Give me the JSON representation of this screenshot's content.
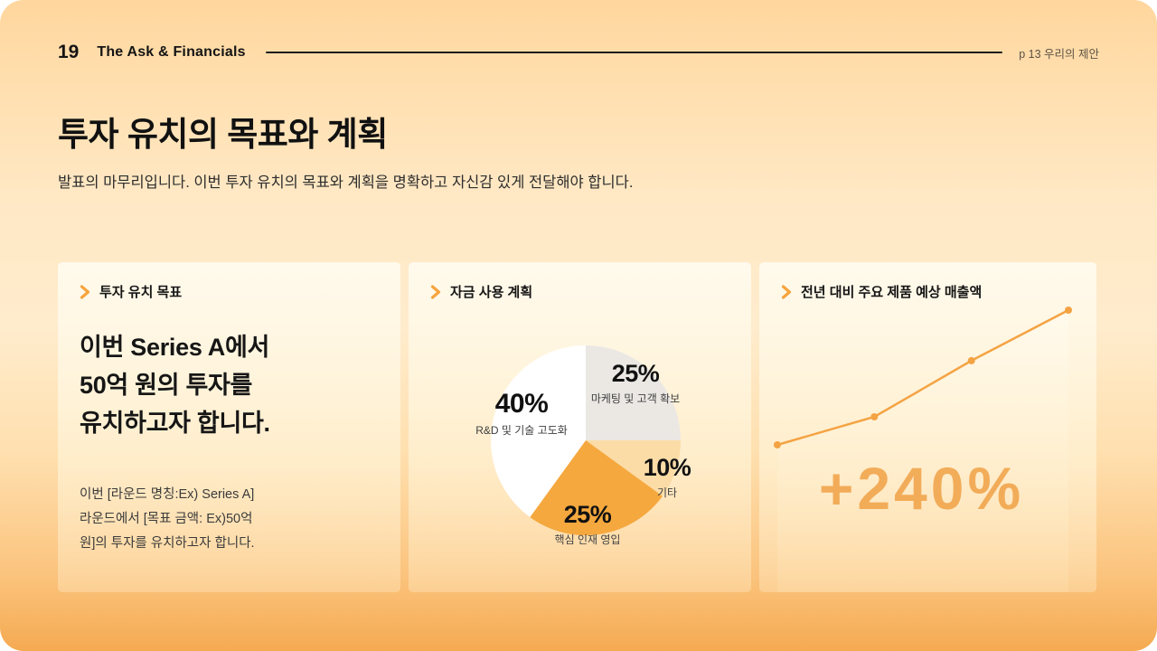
{
  "header": {
    "page_number": "19",
    "section_title": "The Ask & Financials",
    "right_label": "p 13 우리의 제안"
  },
  "title": "투자 유치의 목표와 계획",
  "subtitle": "발표의 마무리입니다. 이번 투자 유치의 목표와 계획을 명확하고 자신감 있게 전달해야 합니다.",
  "colors": {
    "accent_orange": "#F6A43D",
    "text_dark": "#141414"
  },
  "cards": {
    "goal": {
      "header": "투자 유치 목표",
      "main_lines": [
        "이번 Series A에서",
        "50억 원의 투자를",
        "유치하고자 합니다."
      ],
      "body_lines": [
        "이번 [라운드 명칭:Ex) Series A]",
        "라운드에서 [목표 금액: Ex)50억",
        "원]의 투자를 유치하고자 합니다."
      ]
    },
    "fund_usage": {
      "header": "자금 사용 계획"
    },
    "revenue": {
      "header": "전년 대비 주요 제품 예상 매출액",
      "growth_label": "+240%"
    }
  },
  "chart_data": [
    {
      "type": "pie",
      "title": "자금 사용 계획",
      "direction": "clockwise",
      "start_angle_deg": 0,
      "slices": [
        {
          "label": "마케팅 및 고객 확보",
          "value": 25,
          "pct_label": "25%",
          "color": "#EBE8E4"
        },
        {
          "label": "기타",
          "value": 10,
          "pct_label": "10%",
          "color": "#FBDCA6"
        },
        {
          "label": "핵심 인재 영입",
          "value": 25,
          "pct_label": "25%",
          "color": "#F5A83E"
        },
        {
          "label": "R&D 및 기술 고도화",
          "value": 40,
          "pct_label": "40%",
          "color": "#FFFFFF"
        }
      ]
    },
    {
      "type": "line",
      "title": "전년 대비 주요 제품 예상 매출액",
      "x": [
        1,
        2,
        3,
        4
      ],
      "relative_values": [
        100,
        150,
        250,
        340
      ],
      "annotation": "+240%",
      "line_color": "#F4A343",
      "markers": true,
      "axes_visible": false,
      "area_fill": true
    }
  ]
}
